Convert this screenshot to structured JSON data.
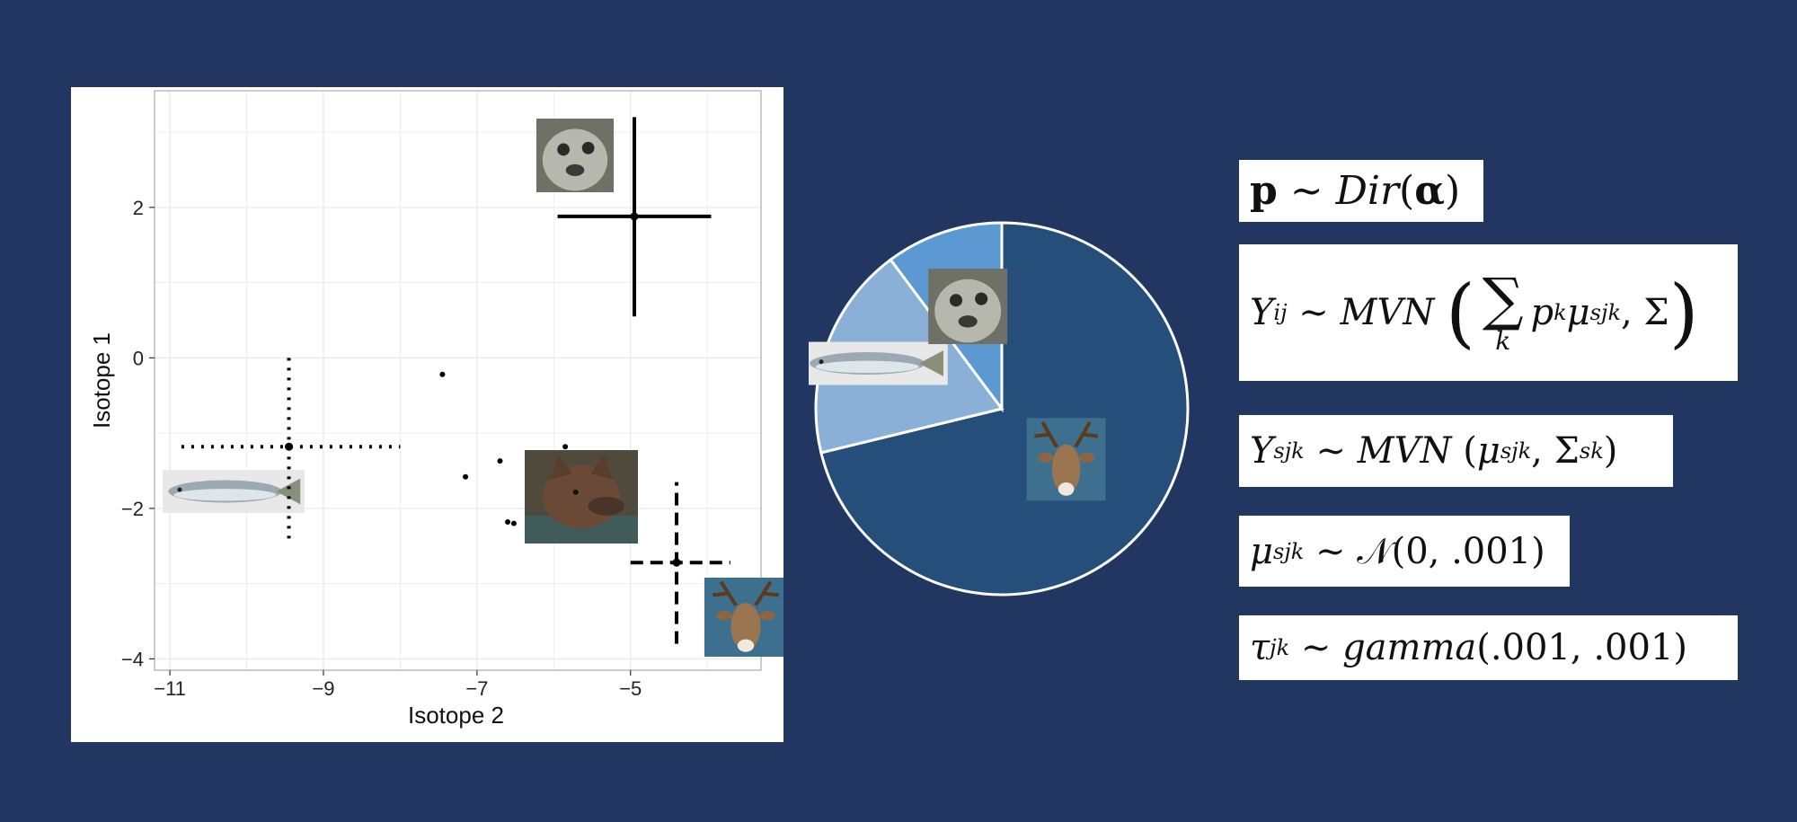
{
  "chart_data": [
    {
      "type": "scatter",
      "xlabel": "Isotope 2",
      "ylabel": "Isotope 1",
      "xlim": [
        -11.2,
        -3.3
      ],
      "ylim": [
        -4.15,
        3.55
      ],
      "x_ticks": [
        -11,
        -9,
        -7,
        -5
      ],
      "y_ticks": [
        -4,
        -2,
        0,
        2
      ],
      "x_tick_labels": [
        "−11",
        "−9",
        "−7",
        "−5"
      ],
      "y_tick_labels": [
        "−4",
        "−2",
        "0",
        "2"
      ],
      "grid": true,
      "sources": [
        {
          "name": "seal",
          "icon": "seal-icon",
          "x": -4.95,
          "y": 1.88,
          "x_range": [
            -5.95,
            -3.95
          ],
          "y_range": [
            0.55,
            3.2
          ],
          "line_style": "solid"
        },
        {
          "name": "salmon",
          "icon": "salmon-icon",
          "x": -9.45,
          "y": -1.18,
          "x_range": [
            -10.85,
            -8.0
          ],
          "y_range": [
            -2.4,
            0.0
          ],
          "line_style": "dotted"
        },
        {
          "name": "deer",
          "icon": "deer-icon",
          "x": -4.4,
          "y": -2.72,
          "x_range": [
            -5.0,
            -3.7
          ],
          "y_range": [
            -3.8,
            -1.65
          ],
          "line_style": "dashed"
        }
      ],
      "consumer": {
        "name": "wolf",
        "icon": "wolf-icon"
      },
      "mixture_points": [
        {
          "x": -7.45,
          "y": -0.22
        },
        {
          "x": -7.15,
          "y": -1.58
        },
        {
          "x": -6.7,
          "y": -1.37
        },
        {
          "x": -6.6,
          "y": -2.18
        },
        {
          "x": -6.52,
          "y": -2.2
        },
        {
          "x": -5.85,
          "y": -1.18
        }
      ]
    },
    {
      "type": "pie",
      "slices": [
        {
          "name": "deer",
          "icon": "deer-icon",
          "value": 0.712,
          "color": "#254f7a"
        },
        {
          "name": "salmon",
          "icon": "salmon-icon",
          "value": 0.186,
          "color": "#8bb0d8"
        },
        {
          "name": "seal",
          "icon": "seal-icon",
          "value": 0.102,
          "color": "#5c98d2"
        }
      ]
    }
  ],
  "colors": {
    "background": "#213762",
    "panel": "#ffffff",
    "grid": "#ebebeb",
    "axis_text": "#222222"
  },
  "equations": [
    {
      "name": "dirichlet-prior"
    },
    {
      "name": "mixture-likelihood"
    },
    {
      "name": "source-likelihood"
    },
    {
      "name": "mean-prior"
    },
    {
      "name": "precision-prior"
    }
  ]
}
